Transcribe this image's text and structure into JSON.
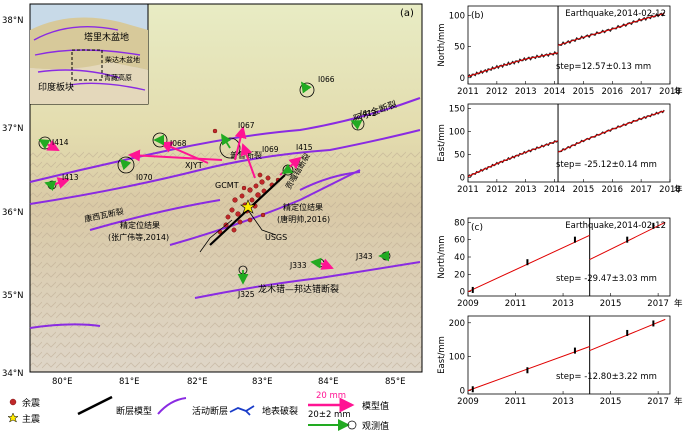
{
  "map": {
    "panel_label": "(a)",
    "lat_labels": [
      "38°N",
      "37°N",
      "36°N",
      "35°N",
      "34°N"
    ],
    "lon_labels": [
      "80°E",
      "81°E",
      "82°E",
      "83°E",
      "84°E",
      "85°E"
    ],
    "inset_labels": [
      "塔里木盆地",
      "柴达木盆地",
      "青藏高原",
      "印度板块"
    ],
    "station_labels": [
      "I414",
      "I068",
      "I067",
      "I066",
      "I412",
      "I415",
      "I070",
      "I069",
      "I413",
      "J343",
      "J333",
      "J325"
    ],
    "fault_labels": [
      "阿尔金断裂",
      "龙木错—邦达错断裂",
      "康西瓦断裂",
      "普鲁断裂",
      "贡嘎错断裂",
      "XJYT"
    ],
    "annotation_labels": [
      "GCMT",
      "USGS",
      "精定位结果",
      "(唐明帅,2016)",
      "精定位结果",
      "(张广伟等,2014)"
    ],
    "colors": {
      "water_bg": "#c8dae8",
      "fault": "#8a2be2",
      "model_arrow": "#ff1493",
      "obs_arrow": "#22aa22"
    }
  },
  "legend": {
    "items": [
      "余震",
      "主震",
      "断层模型",
      "活动断层",
      "地表破裂",
      "模型值",
      "观测值"
    ],
    "model_scale": "20 mm",
    "obs_scale": "20±2 mm"
  },
  "chart_data": [
    {
      "type": "line",
      "panel": "(b)",
      "title": "Earthquake,2014-02-12",
      "ylabel": "North/mm",
      "xlabel_unit": "年",
      "xlim": [
        2011,
        2018
      ],
      "ylim": [
        -10,
        115
      ],
      "xticks": [
        2011,
        2012,
        2013,
        2014,
        2015,
        2016,
        2017,
        2018
      ],
      "yticks": [
        0,
        50,
        100
      ],
      "event_x": 2014.12,
      "series": [
        {
          "x": [
            2011.0,
            2012.0,
            2013.0,
            2014.12
          ],
          "values": [
            2,
            17,
            30,
            40
          ]
        },
        {
          "x": [
            2014.12,
            2015.0,
            2016.0,
            2017.0,
            2017.8
          ],
          "values": [
            52,
            65,
            78,
            93,
            103
          ]
        }
      ],
      "annotation": "step=12.57±0.13 mm"
    },
    {
      "type": "line",
      "panel": "",
      "title": "",
      "ylabel": "East/mm",
      "xlabel_unit": "年",
      "xlim": [
        2011,
        2018
      ],
      "ylim": [
        -10,
        160
      ],
      "xticks": [
        2011,
        2012,
        2013,
        2014,
        2015,
        2016,
        2017,
        2018
      ],
      "yticks": [
        0,
        50,
        100,
        150
      ],
      "event_x": 2014.12,
      "series": [
        {
          "x": [
            2011.0,
            2012.0,
            2013.0,
            2014.12
          ],
          "values": [
            2,
            30,
            55,
            80
          ]
        },
        {
          "x": [
            2014.12,
            2015.0,
            2016.0,
            2017.0,
            2017.8
          ],
          "values": [
            55,
            80,
            105,
            128,
            145
          ]
        }
      ],
      "annotation": "step= -25.12±0.14 mm"
    },
    {
      "type": "line",
      "panel": "(c)",
      "title": "Earthquake,2014-02-12",
      "ylabel": "North/mm",
      "xlabel_unit": "年",
      "xlim": [
        2009,
        2017.5
      ],
      "ylim": [
        -5,
        85
      ],
      "xticks": [
        2009,
        2011,
        2013,
        2015,
        2017
      ],
      "yticks": [
        0,
        20,
        40,
        60,
        80
      ],
      "event_x": 2014.12,
      "series": [
        {
          "x": [
            2009.0,
            2014.12
          ],
          "values": [
            0,
            65
          ]
        },
        {
          "x": [
            2014.12,
            2017.3
          ],
          "values": [
            37,
            80
          ]
        }
      ],
      "points": [
        {
          "x": 2009.2,
          "y": 2
        },
        {
          "x": 2011.5,
          "y": 34
        },
        {
          "x": 2013.5,
          "y": 60
        },
        {
          "x": 2015.7,
          "y": 60
        },
        {
          "x": 2016.8,
          "y": 76
        }
      ],
      "annotation": "step= -29.47±3.03 mm"
    },
    {
      "type": "line",
      "panel": "",
      "title": "",
      "ylabel": "East/mm",
      "xlabel_unit": "年",
      "xlim": [
        2009,
        2017.5
      ],
      "ylim": [
        -10,
        220
      ],
      "xticks": [
        2009,
        2011,
        2013,
        2015,
        2017
      ],
      "yticks": [
        0,
        100,
        200
      ],
      "event_x": 2014.12,
      "series": [
        {
          "x": [
            2009.0,
            2014.12
          ],
          "values": [
            0,
            130
          ]
        },
        {
          "x": [
            2014.12,
            2017.3
          ],
          "values": [
            118,
            210
          ]
        }
      ],
      "points": [
        {
          "x": 2009.2,
          "y": 4
        },
        {
          "x": 2011.5,
          "y": 60
        },
        {
          "x": 2013.5,
          "y": 118
        },
        {
          "x": 2015.7,
          "y": 170
        },
        {
          "x": 2016.8,
          "y": 198
        }
      ],
      "annotation": "step= -12.80±3.22 mm"
    }
  ]
}
